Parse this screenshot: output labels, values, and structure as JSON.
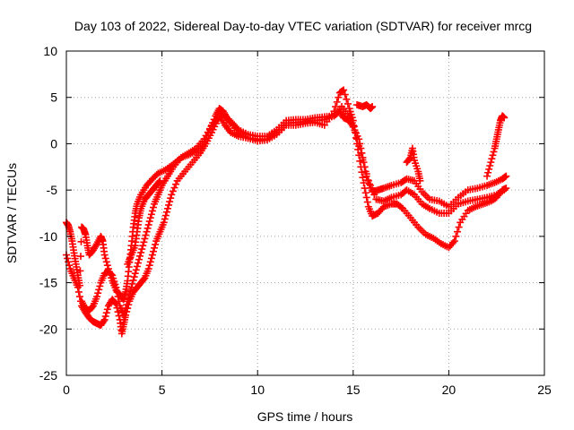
{
  "chart_data": {
    "type": "scatter",
    "title": "Day 103 of 2022, Sidereal Day-to-day VTEC variation (SDTVAR) for receiver mrcg",
    "xlabel": "GPS time / hours",
    "ylabel": "SDTVAR / TECUs",
    "xlim": [
      0,
      25
    ],
    "ylim": [
      -25,
      10
    ],
    "xticks": [
      0,
      5,
      10,
      15,
      20,
      25
    ],
    "yticks": [
      -25,
      -20,
      -15,
      -10,
      -5,
      0,
      5,
      10
    ],
    "xtick_labels": [
      "0",
      "5",
      "10",
      "15",
      "20",
      "25"
    ],
    "ytick_labels": [
      "-25",
      "-20",
      "-15",
      "-10",
      "-5",
      "0",
      "5",
      "10"
    ],
    "grid": true,
    "marker": "+",
    "color": "#ff0000",
    "series": [
      {
        "points": [
          [
            0.0,
            -8.5
          ],
          [
            0.1,
            -8.8
          ],
          [
            0.2,
            -9.5
          ],
          [
            0.3,
            -10.5
          ],
          [
            0.4,
            -11.8
          ],
          [
            0.5,
            -13.0
          ],
          [
            0.6,
            -14.2
          ],
          [
            0.7,
            -15.3
          ],
          [
            0.8,
            -9.0
          ],
          [
            0.9,
            -9.2
          ],
          [
            1.0,
            -9.8
          ],
          [
            1.1,
            -11.0
          ],
          [
            1.2,
            -12.0
          ],
          [
            1.4,
            -11.5
          ],
          [
            1.6,
            -10.8
          ],
          [
            1.8,
            -10.0
          ],
          [
            1.9,
            -10.5
          ],
          [
            2.0,
            -12.0
          ],
          [
            2.2,
            -13.5
          ],
          [
            2.4,
            -14.8
          ],
          [
            2.6,
            -15.8
          ],
          [
            2.8,
            -16.3
          ],
          [
            2.9,
            -16.6
          ],
          [
            3.0,
            -16.8
          ],
          [
            3.1,
            -16.0
          ],
          [
            3.2,
            -14.8
          ],
          [
            3.3,
            -12.8
          ],
          [
            3.4,
            -11.0
          ],
          [
            3.5,
            -9.0
          ],
          [
            3.6,
            -7.5
          ],
          [
            3.7,
            -6.5
          ],
          [
            3.9,
            -5.5
          ],
          [
            4.2,
            -4.5
          ],
          [
            4.5,
            -3.8
          ],
          [
            4.8,
            -3.2
          ],
          [
            5.2,
            -2.8
          ],
          [
            5.6,
            -2.2
          ],
          [
            6.0,
            -1.5
          ],
          [
            6.4,
            -1.2
          ],
          [
            6.8,
            -0.8
          ],
          [
            7.2,
            0.2
          ],
          [
            7.5,
            1.5
          ],
          [
            7.8,
            3.0
          ],
          [
            8.0,
            3.8
          ],
          [
            8.2,
            3.5
          ],
          [
            8.4,
            2.8
          ],
          [
            8.7,
            2.2
          ],
          [
            9.0,
            1.5
          ],
          [
            9.5,
            1.0
          ],
          [
            10.0,
            0.8
          ],
          [
            10.5,
            0.8
          ],
          [
            11.0,
            1.5
          ],
          [
            11.5,
            2.5
          ],
          [
            12.0,
            2.6
          ],
          [
            12.5,
            2.6
          ],
          [
            13.0,
            2.8
          ],
          [
            13.5,
            2.9
          ],
          [
            14.0,
            3.0
          ],
          [
            14.3,
            3.5
          ],
          [
            14.5,
            2.8
          ],
          [
            14.8,
            2.5
          ],
          [
            15.0,
            1.8
          ],
          [
            15.3,
            0.5
          ],
          [
            15.5,
            -1.5
          ],
          [
            15.7,
            -3.5
          ],
          [
            16.0,
            -5.2
          ],
          [
            16.3,
            -5.0
          ],
          [
            16.6,
            -4.8
          ],
          [
            17.0,
            -4.5
          ],
          [
            17.5,
            -4.2
          ],
          [
            17.8,
            -3.8
          ],
          [
            18.2,
            -4.0
          ],
          [
            18.6,
            -5.2
          ],
          [
            19.0,
            -6.0
          ],
          [
            19.5,
            -6.2
          ],
          [
            20.0,
            -6.8
          ],
          [
            20.5,
            -5.8
          ],
          [
            21.0,
            -5.0
          ],
          [
            21.5,
            -4.8
          ],
          [
            22.0,
            -4.5
          ],
          [
            22.4,
            -4.2
          ],
          [
            22.8,
            -3.8
          ],
          [
            23.0,
            -3.5
          ]
        ]
      },
      {
        "points": [
          [
            0.0,
            -12.0
          ],
          [
            0.2,
            -13.5
          ],
          [
            0.4,
            -14.5
          ],
          [
            0.6,
            -15.5
          ],
          [
            0.8,
            -17.5
          ],
          [
            1.0,
            -18.2
          ],
          [
            1.2,
            -18.8
          ],
          [
            1.4,
            -19.2
          ],
          [
            1.6,
            -19.4
          ],
          [
            1.8,
            -19.6
          ],
          [
            2.0,
            -19.0
          ],
          [
            2.2,
            -17.5
          ],
          [
            2.4,
            -16.8
          ],
          [
            2.6,
            -17.3
          ],
          [
            2.8,
            -19.0
          ],
          [
            2.9,
            -20.5
          ],
          [
            3.0,
            -19.5
          ],
          [
            3.1,
            -18.5
          ],
          [
            3.3,
            -17.0
          ],
          [
            3.5,
            -16.0
          ],
          [
            3.7,
            -15.5
          ],
          [
            3.9,
            -15.0
          ],
          [
            4.1,
            -14.5
          ],
          [
            4.3,
            -13.5
          ],
          [
            4.5,
            -12.0
          ],
          [
            4.7,
            -10.5
          ],
          [
            4.9,
            -9.5
          ],
          [
            5.1,
            -8.5
          ],
          [
            5.3,
            -7.0
          ],
          [
            5.5,
            -5.5
          ],
          [
            5.8,
            -4.0
          ],
          [
            6.2,
            -3.0
          ],
          [
            6.6,
            -2.0
          ],
          [
            7.0,
            -1.0
          ],
          [
            7.3,
            0.0
          ],
          [
            7.6,
            1.2
          ],
          [
            7.9,
            2.5
          ],
          [
            8.1,
            3.2
          ],
          [
            8.3,
            3.0
          ],
          [
            8.6,
            2.2
          ],
          [
            9.0,
            1.2
          ],
          [
            9.5,
            0.6
          ],
          [
            10.0,
            0.3
          ],
          [
            10.5,
            0.4
          ],
          [
            11.0,
            1.0
          ],
          [
            11.5,
            2.0
          ],
          [
            12.0,
            2.0
          ],
          [
            12.5,
            2.2
          ],
          [
            13.0,
            2.3
          ],
          [
            13.5,
            2.0
          ],
          [
            14.0,
            3.5
          ],
          [
            14.3,
            5.5
          ],
          [
            14.5,
            5.8
          ],
          [
            14.8,
            3.8
          ],
          [
            15.0,
            2.5
          ],
          [
            15.2,
            0.0
          ],
          [
            15.4,
            -2.5
          ],
          [
            15.6,
            -4.8
          ],
          [
            15.8,
            -6.8
          ],
          [
            16.0,
            -7.8
          ],
          [
            16.3,
            -7.5
          ],
          [
            16.6,
            -6.8
          ],
          [
            17.0,
            -6.5
          ],
          [
            17.3,
            -6.5
          ],
          [
            17.6,
            -7.0
          ],
          [
            18.0,
            -8.0
          ],
          [
            18.4,
            -9.0
          ],
          [
            18.8,
            -9.8
          ],
          [
            19.2,
            -10.2
          ],
          [
            19.6,
            -10.8
          ],
          [
            20.0,
            -11.2
          ],
          [
            20.3,
            -10.5
          ],
          [
            20.6,
            -8.5
          ],
          [
            21.0,
            -7.2
          ],
          [
            21.4,
            -6.8
          ],
          [
            21.8,
            -6.5
          ],
          [
            22.2,
            -6.2
          ],
          [
            22.5,
            -5.8
          ],
          [
            22.8,
            -5.0
          ],
          [
            23.0,
            -4.8
          ]
        ]
      },
      {
        "points": [
          [
            0.8,
            -17.0
          ],
          [
            1.0,
            -17.8
          ],
          [
            1.2,
            -18.0
          ],
          [
            1.4,
            -17.5
          ],
          [
            1.6,
            -16.5
          ],
          [
            1.8,
            -15.0
          ],
          [
            2.0,
            -14.0
          ],
          [
            2.2,
            -13.8
          ],
          [
            2.4,
            -14.2
          ],
          [
            2.6,
            -15.5
          ],
          [
            2.8,
            -17.5
          ],
          [
            3.0,
            -18.5
          ],
          [
            3.2,
            -17.0
          ],
          [
            3.4,
            -15.5
          ],
          [
            3.6,
            -14.0
          ],
          [
            3.8,
            -12.5
          ],
          [
            4.0,
            -11.0
          ],
          [
            4.2,
            -9.5
          ],
          [
            4.4,
            -8.0
          ],
          [
            4.6,
            -6.5
          ],
          [
            4.8,
            -5.5
          ],
          [
            5.0,
            -4.5
          ],
          [
            5.3,
            -3.5
          ],
          [
            5.6,
            -2.5
          ],
          [
            6.0,
            -1.5
          ],
          [
            6.4,
            -1.0
          ],
          [
            6.8,
            -0.5
          ],
          [
            7.2,
            0.5
          ],
          [
            7.6,
            2.0
          ],
          [
            8.0,
            3.0
          ],
          [
            8.3,
            2.0
          ],
          [
            8.6,
            1.2
          ],
          [
            9.0,
            0.8
          ],
          [
            9.5,
            0.6
          ],
          [
            10.0,
            0.5
          ],
          [
            10.5,
            0.5
          ],
          [
            11.0,
            1.2
          ],
          [
            11.5,
            2.2
          ],
          [
            12.0,
            2.3
          ],
          [
            12.5,
            2.4
          ],
          [
            13.0,
            2.5
          ],
          [
            13.5,
            2.6
          ],
          [
            14.0,
            3.0
          ],
          [
            14.4,
            4.0
          ],
          [
            14.8,
            3.0
          ],
          [
            15.0,
            2.0
          ],
          [
            15.4,
            -1.0
          ],
          [
            15.8,
            -4.0
          ],
          [
            16.2,
            -6.0
          ],
          [
            16.6,
            -6.2
          ],
          [
            17.0,
            -5.8
          ],
          [
            17.5,
            -5.5
          ],
          [
            17.8,
            -5.0
          ],
          [
            18.2,
            -5.5
          ],
          [
            18.6,
            -6.5
          ],
          [
            19.0,
            -7.0
          ],
          [
            19.5,
            -7.5
          ],
          [
            20.0,
            -7.5
          ],
          [
            20.5,
            -6.5
          ],
          [
            21.0,
            -6.2
          ],
          [
            21.5,
            -6.0
          ],
          [
            22.0,
            -5.8
          ],
          [
            22.5,
            -5.5
          ],
          [
            22.9,
            -5.0
          ]
        ]
      },
      {
        "points": [
          [
            3.2,
            -13.0
          ],
          [
            3.4,
            -12.0
          ],
          [
            3.6,
            -11.0
          ],
          [
            3.7,
            -9.5
          ],
          [
            3.8,
            -8.0
          ],
          [
            3.9,
            -7.0
          ],
          [
            4.1,
            -6.0
          ],
          [
            4.3,
            -5.5
          ],
          [
            4.5,
            -5.0
          ],
          [
            4.7,
            -4.5
          ],
          [
            4.9,
            -4.0
          ]
        ]
      },
      {
        "points": [
          [
            15.2,
            4.2
          ],
          [
            15.5,
            4.0
          ],
          [
            15.7,
            4.2
          ],
          [
            15.9,
            3.8
          ],
          [
            16.0,
            4.0
          ]
        ]
      },
      {
        "points": [
          [
            17.8,
            -2.0
          ],
          [
            18.0,
            -1.5
          ],
          [
            18.1,
            -0.5
          ],
          [
            18.2,
            -1.8
          ],
          [
            18.4,
            -3.0
          ],
          [
            18.5,
            -4.0
          ]
        ]
      },
      {
        "points": [
          [
            22.0,
            -3.5
          ],
          [
            22.2,
            -2.0
          ],
          [
            22.4,
            -0.5
          ],
          [
            22.5,
            0.5
          ],
          [
            22.6,
            1.5
          ],
          [
            22.7,
            2.5
          ],
          [
            22.8,
            3.0
          ],
          [
            22.9,
            2.8
          ]
        ]
      }
    ]
  }
}
